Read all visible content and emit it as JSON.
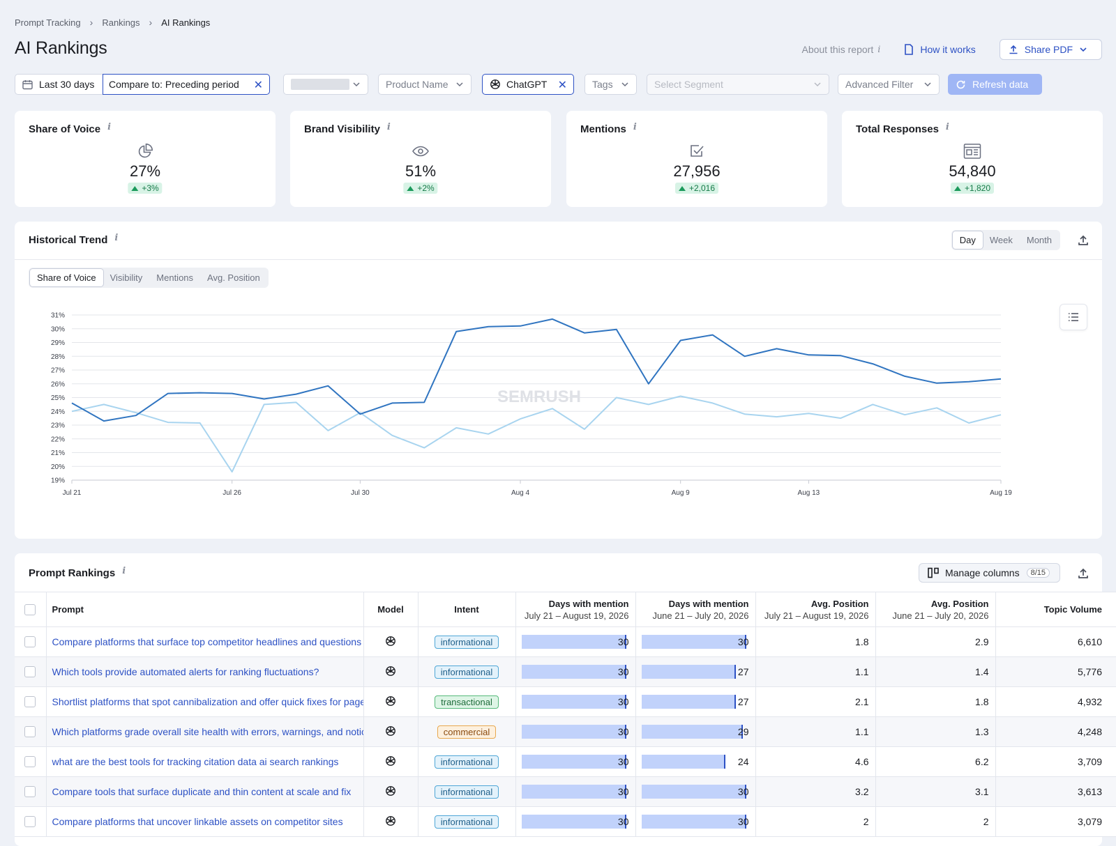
{
  "breadcrumb": [
    "Prompt Tracking",
    "Rankings",
    "AI Rankings"
  ],
  "page_title": "AI Rankings",
  "header": {
    "about": "About this report",
    "how": "How it works",
    "share": "Share PDF"
  },
  "filters": {
    "date": "Last 30 days",
    "compare": "Compare to: Preceding period",
    "product": "Product Name",
    "model": "ChatGPT",
    "tags": "Tags",
    "segment": "Select Segment",
    "advanced": "Advanced Filter",
    "refresh": "Refresh data"
  },
  "metrics": [
    {
      "title": "Share of Voice",
      "value": "27%",
      "delta": "+3%",
      "icon": "pie-chart-icon"
    },
    {
      "title": "Brand Visibility",
      "value": "51%",
      "delta": "+2%",
      "icon": "eye-icon"
    },
    {
      "title": "Mentions",
      "value": "27,956",
      "delta": "+2,016",
      "icon": "checkbox-icon"
    },
    {
      "title": "Total Responses",
      "value": "54,840",
      "delta": "+1,820",
      "icon": "newspaper-icon"
    }
  ],
  "trend": {
    "title": "Historical Trend",
    "periods": [
      "Day",
      "Week",
      "Month"
    ],
    "active_period": "Day",
    "metric_tabs": [
      "Share of Voice",
      "Visibility",
      "Mentions",
      "Avg. Position"
    ],
    "active_metric": "Share of Voice",
    "watermark": "SEMRUSH"
  },
  "chart_data": {
    "type": "line",
    "y_unit": "%",
    "ylim": [
      19,
      31
    ],
    "y_ticks": [
      19,
      20,
      21,
      22,
      23,
      24,
      25,
      26,
      27,
      28,
      29,
      30,
      31
    ],
    "x_tick_labels": [
      "Jul 21",
      "Jul 26",
      "Jul 30",
      "Aug 4",
      "Aug 9",
      "Aug 13",
      "Aug 19"
    ],
    "x_tick_index": [
      0,
      5,
      9,
      14,
      19,
      23,
      29
    ],
    "x": [
      "Jul 21",
      "Jul 22",
      "Jul 23",
      "Jul 24",
      "Jul 25",
      "Jul 26",
      "Jul 27",
      "Jul 28",
      "Jul 29",
      "Jul 30",
      "Jul 31",
      "Aug 1",
      "Aug 2",
      "Aug 3",
      "Aug 4",
      "Aug 5",
      "Aug 6",
      "Aug 7",
      "Aug 8",
      "Aug 9",
      "Aug 10",
      "Aug 11",
      "Aug 12",
      "Aug 13",
      "Aug 14",
      "Aug 15",
      "Aug 16",
      "Aug 17",
      "Aug 18",
      "Aug 19"
    ],
    "series": [
      {
        "color": "#2f74c0",
        "values": [
          24.6,
          23.3,
          23.7,
          25.3,
          25.35,
          25.3,
          24.9,
          25.25,
          25.85,
          23.8,
          24.6,
          24.65,
          29.8,
          30.15,
          30.2,
          30.7,
          29.7,
          29.95,
          26.0,
          29.15,
          29.55,
          28.0,
          28.55,
          28.1,
          28.05,
          27.45,
          26.55,
          26.05,
          26.15,
          26.35
        ]
      },
      {
        "color": "#a8d4ef",
        "values": [
          24.0,
          24.5,
          23.9,
          23.2,
          23.15,
          19.6,
          24.5,
          24.65,
          22.6,
          23.9,
          22.25,
          21.35,
          22.8,
          22.35,
          23.45,
          24.2,
          22.7,
          25.0,
          24.5,
          25.1,
          24.6,
          23.8,
          23.6,
          23.85,
          23.5,
          24.5,
          23.75,
          24.25,
          23.15,
          23.75
        ]
      }
    ]
  },
  "rankings": {
    "title": "Prompt Rankings",
    "manage": "Manage columns",
    "manage_badge": "8/15",
    "columns": {
      "prompt": "Prompt",
      "model": "Model",
      "intent": "Intent",
      "days_cur": "Days with mention",
      "days_cur_sub": "July 21 – August 19, 2026",
      "days_prev": "Days with mention",
      "days_prev_sub": "June 21 – July 20, 2026",
      "pos_cur": "Avg. Position",
      "pos_cur_sub": "July 21 – August 19, 2026",
      "pos_prev": "Avg. Position",
      "pos_prev_sub": "June 21 – July 20, 2026",
      "volume": "Topic Volume"
    },
    "rows": [
      {
        "prompt": "Compare platforms that surface top competitor headlines and questions",
        "intent": "informational",
        "days_cur": 30,
        "days_prev": 30,
        "pos_cur": "1.8",
        "pos_prev": "2.9",
        "volume": "6,610"
      },
      {
        "prompt": "Which tools provide automated alerts for ranking fluctuations?",
        "intent": "informational",
        "days_cur": 30,
        "days_prev": 27,
        "pos_cur": "1.1",
        "pos_prev": "1.4",
        "volume": "5,776"
      },
      {
        "prompt": "Shortlist platforms that spot cannibalization and offer quick fixes for pages",
        "intent": "transactional",
        "days_cur": 30,
        "days_prev": 27,
        "pos_cur": "2.1",
        "pos_prev": "1.8",
        "volume": "4,932"
      },
      {
        "prompt": "Which platforms grade overall site health with errors, warnings, and notices",
        "intent": "commercial",
        "days_cur": 30,
        "days_prev": 29,
        "pos_cur": "1.1",
        "pos_prev": "1.3",
        "volume": "4,248"
      },
      {
        "prompt": "what are the best tools for tracking citation data ai search rankings",
        "intent": "informational",
        "days_cur": 30,
        "days_prev": 24,
        "pos_cur": "4.6",
        "pos_prev": "6.2",
        "volume": "3,709"
      },
      {
        "prompt": "Compare tools that surface duplicate and thin content at scale and fix",
        "intent": "informational",
        "days_cur": 30,
        "days_prev": 30,
        "pos_cur": "3.2",
        "pos_prev": "3.1",
        "volume": "3,613"
      },
      {
        "prompt": "Compare platforms that uncover linkable assets on competitor sites",
        "intent": "informational",
        "days_cur": 30,
        "days_prev": 30,
        "pos_cur": "2",
        "pos_prev": "2",
        "volume": "3,079"
      }
    ]
  }
}
